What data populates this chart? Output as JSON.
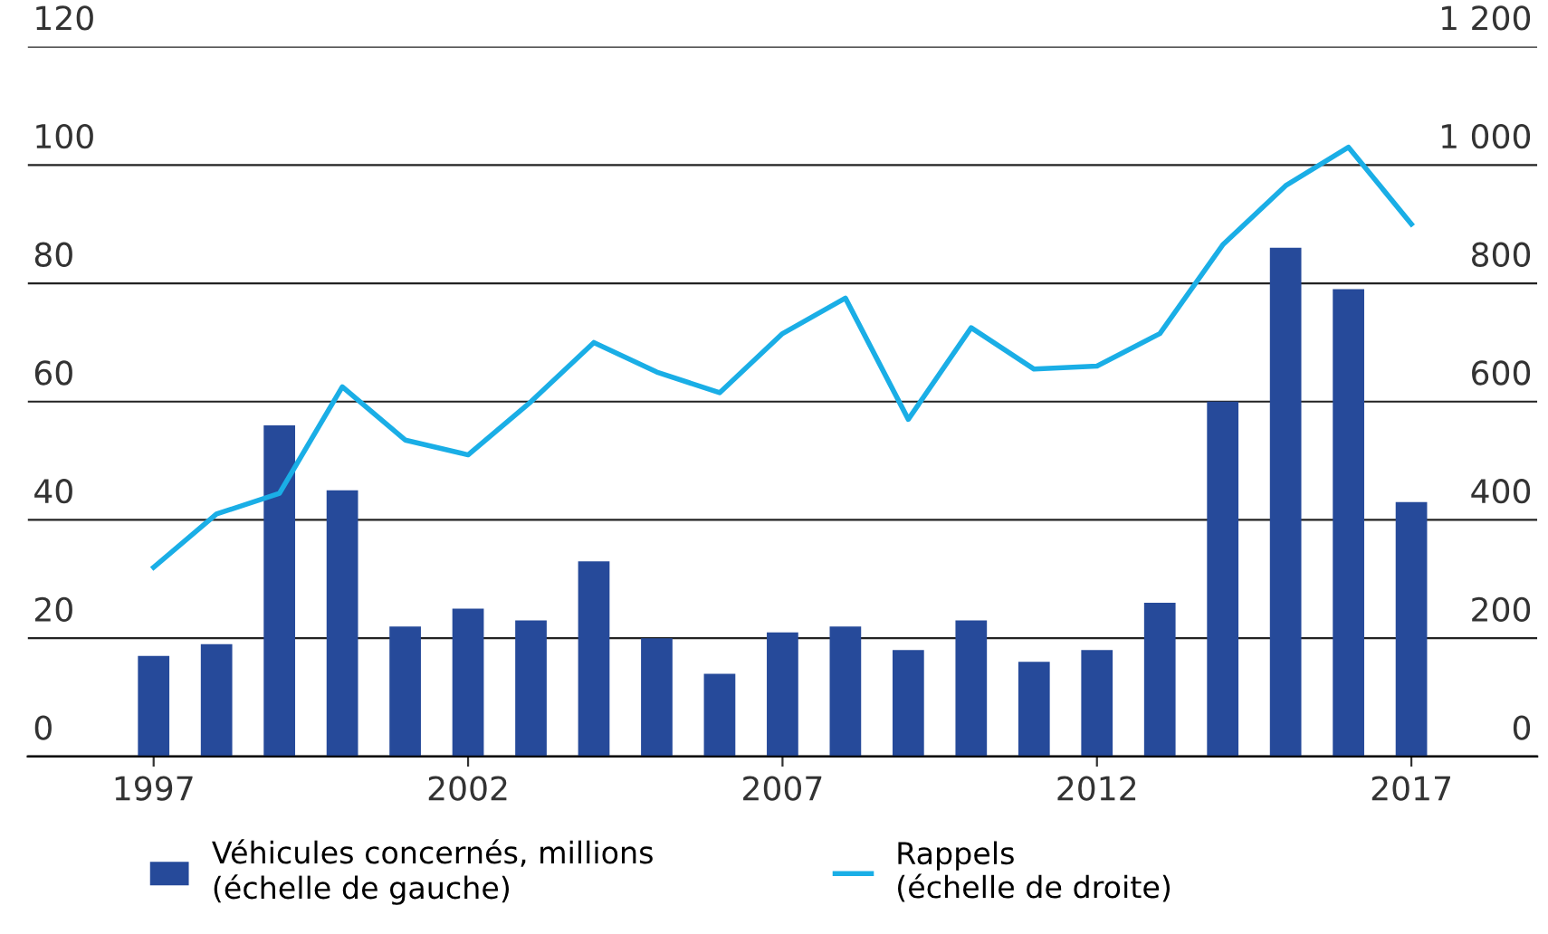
{
  "chart_data": {
    "type": "bar",
    "x": [
      1997,
      1998,
      1999,
      2000,
      2001,
      2002,
      2003,
      2004,
      2005,
      2006,
      2007,
      2008,
      2009,
      2010,
      2011,
      2012,
      2013,
      2014,
      2015,
      2016,
      2017
    ],
    "series": [
      {
        "name": "Véhicules concernés, millions\n(échelle de gauche)",
        "color": "#264a9a",
        "values": [
          17,
          19,
          56,
          45,
          22,
          25,
          23,
          33,
          20,
          14,
          21,
          22,
          18,
          23,
          16,
          18,
          26,
          60,
          86,
          79,
          43
        ]
      },
      {
        "name": "Rappels\n(échelle de droite)",
        "type": "line",
        "axis": "y2",
        "color": "#1aaee6",
        "values": [
          320,
          410,
          445,
          625,
          535,
          510,
          600,
          700,
          650,
          615,
          715,
          775,
          570,
          725,
          655,
          660,
          715,
          865,
          965,
          1030,
          900
        ]
      }
    ],
    "xlim": [
      1995,
      2019
    ],
    "xticks": [
      1997,
      2002,
      2007,
      2012,
      2017
    ],
    "ylim": [
      0,
      120
    ],
    "yticks": [
      0,
      20,
      40,
      60,
      80,
      100,
      120
    ],
    "y2lim": [
      0,
      1200
    ],
    "y2ticks": [
      0,
      200,
      400,
      600,
      800,
      {
        "value": 1000,
        "label": "1 000"
      },
      {
        "value": 1200,
        "label": "1 200"
      }
    ],
    "grid": "y",
    "legend": "bottom",
    "marker": "none",
    "line_style": "solid"
  }
}
